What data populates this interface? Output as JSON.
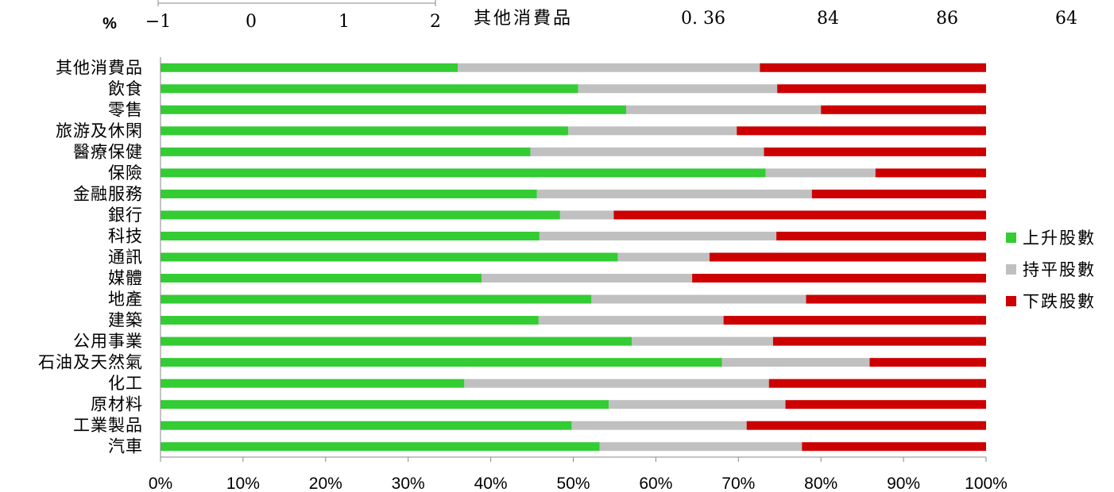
{
  "chart_data": {
    "type": "bar",
    "stacked": "percent",
    "orientation": "horizontal",
    "categories": [
      "其他消費品",
      "飲食",
      "零售",
      "旅游及休閑",
      "醫療保健",
      "保險",
      "金融服務",
      "銀行",
      "科技",
      "通訊",
      "媒體",
      "地產",
      "建築",
      "公用事業",
      "石油及天然氣",
      "化工",
      "原材料",
      "工業製品",
      "汽車"
    ],
    "series": [
      {
        "name": "上升股數",
        "color": "#33cc33",
        "values": [
          36.0,
          50.6,
          56.4,
          49.4,
          44.8,
          73.3,
          45.6,
          48.4,
          45.9,
          55.4,
          38.9,
          52.2,
          45.8,
          57.1,
          68.0,
          36.8,
          54.3,
          49.8,
          53.2
        ]
      },
      {
        "name": "持平股數",
        "color": "#c0c0c0",
        "values": [
          36.6,
          24.1,
          23.6,
          20.4,
          28.3,
          13.3,
          33.3,
          6.5,
          28.7,
          11.1,
          25.5,
          26.0,
          22.4,
          17.1,
          17.9,
          36.9,
          21.4,
          21.2,
          24.5
        ]
      },
      {
        "name": "下跌股數",
        "color": "#cc0000",
        "values": [
          27.4,
          25.3,
          20.0,
          30.2,
          26.9,
          13.4,
          21.1,
          45.1,
          25.4,
          33.5,
          35.6,
          21.8,
          31.8,
          25.8,
          14.1,
          26.3,
          24.3,
          29.0,
          22.3
        ]
      }
    ],
    "xlim": [
      0,
      100
    ],
    "x_ticks": [
      "0%",
      "10%",
      "20%",
      "30%",
      "40%",
      "50%",
      "60%",
      "70%",
      "80%",
      "90%",
      "100%"
    ],
    "legend_position": "right",
    "grid": false
  },
  "top_strip": {
    "unit_label": "%",
    "axis_ticks": [
      "−1",
      "0",
      "1",
      "2"
    ],
    "readout": {
      "category": "其他消費品",
      "value_1": "0. 36",
      "value_2": "84",
      "value_3": "86",
      "value_4": "64"
    }
  }
}
